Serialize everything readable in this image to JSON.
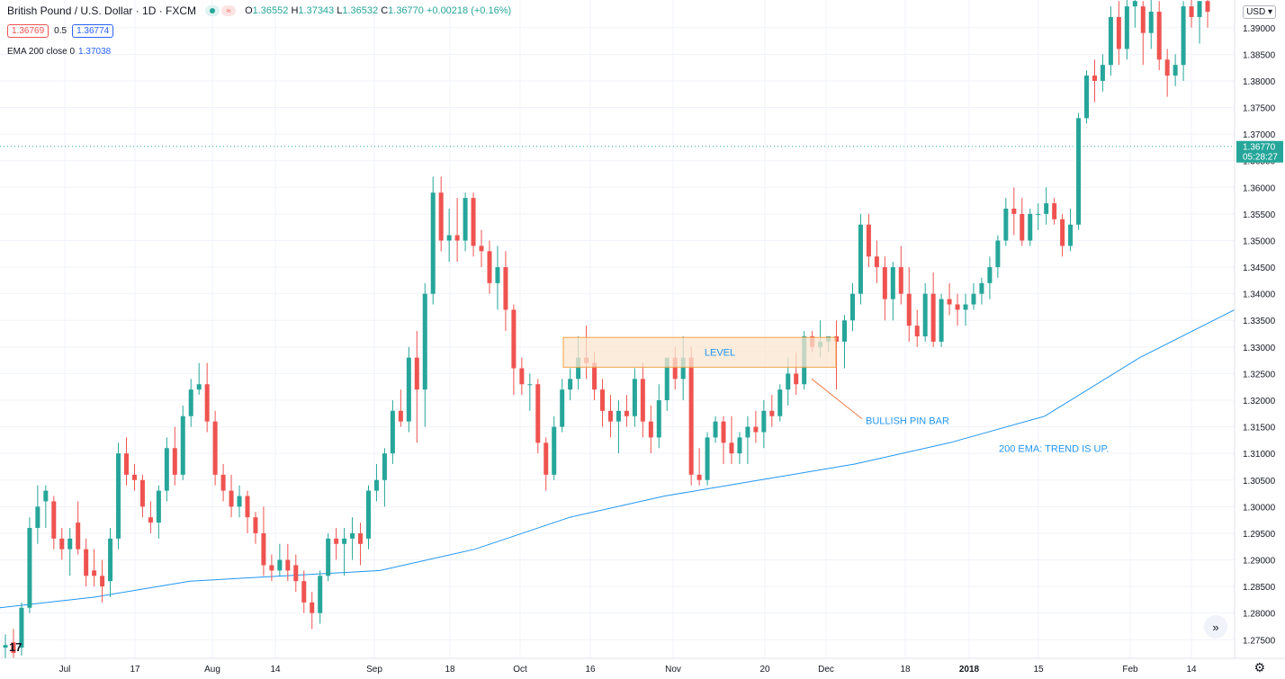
{
  "header": {
    "title": "British Pound / U.S. Dollar · 1D · FXCM",
    "ohlc": {
      "o_label": "O",
      "o": "1.36552",
      "h_label": "H",
      "h": "1.37343",
      "l_label": "L",
      "l": "1.36532",
      "c_label": "C",
      "c": "1.36770",
      "change": "+0.00218 (+0.16%)"
    },
    "sell_price": "1.36769",
    "spread": "0.5",
    "buy_price": "1.36774",
    "indicator_label": "EMA 200 close 0",
    "indicator_value": "1.37038"
  },
  "currency_selector": "USD",
  "price_label": {
    "price": "1.36770",
    "countdown": "05:28:27"
  },
  "annotations": {
    "level": "LEVEL",
    "pin_bar": "BULLISH PIN BAR",
    "ema_note": "200 EMA: TREND IS UP."
  },
  "colors": {
    "up": "#26a69a",
    "down": "#ef5350",
    "ema": "#2196f3",
    "level_fill": "#fbe6cf",
    "level_border": "#f0a24b"
  },
  "chart_data": {
    "type": "candlestick",
    "y_ticks": [
      "1.39000",
      "1.38500",
      "1.38000",
      "1.37500",
      "1.37000",
      "1.36500",
      "1.36000",
      "1.35500",
      "1.35000",
      "1.34500",
      "1.34000",
      "1.33500",
      "1.33000",
      "1.32500",
      "1.32000",
      "1.31500",
      "1.31000",
      "1.30500",
      "1.30000",
      "1.29500",
      "1.29000",
      "1.28500",
      "1.28000",
      "1.27500"
    ],
    "ylim": [
      1.2715,
      1.3952
    ],
    "x_ticks": [
      "Jul",
      "17",
      "Aug",
      "14",
      "Sep",
      "18",
      "Oct",
      "16",
      "Nov",
      "20",
      "Dec",
      "18",
      "2018",
      "15",
      "Feb",
      "14"
    ],
    "last_price": 1.3677,
    "ohlc": [
      [
        1.2735,
        1.276,
        1.2715,
        1.274
      ],
      [
        1.2745,
        1.277,
        1.2715,
        1.2725
      ],
      [
        1.2735,
        1.282,
        1.272,
        1.281
      ],
      [
        1.281,
        1.298,
        1.28,
        1.296
      ],
      [
        1.296,
        1.304,
        1.293,
        1.3
      ],
      [
        1.301,
        1.304,
        1.296,
        1.303
      ],
      [
        1.301,
        1.302,
        1.292,
        1.294
      ],
      [
        1.294,
        1.296,
        1.29,
        1.292
      ],
      [
        1.292,
        1.296,
        1.287,
        1.294
      ],
      [
        1.297,
        1.301,
        1.291,
        1.292
      ],
      [
        1.292,
        1.294,
        1.285,
        1.287
      ],
      [
        1.288,
        1.292,
        1.285,
        1.287
      ],
      [
        1.287,
        1.29,
        1.282,
        1.285
      ],
      [
        1.286,
        1.296,
        1.283,
        1.294
      ],
      [
        1.294,
        1.312,
        1.292,
        1.31
      ],
      [
        1.31,
        1.313,
        1.304,
        1.306
      ],
      [
        1.306,
        1.308,
        1.303,
        1.305
      ],
      [
        1.305,
        1.306,
        1.298,
        1.3
      ],
      [
        1.298,
        1.301,
        1.295,
        1.297
      ],
      [
        1.297,
        1.304,
        1.294,
        1.303
      ],
      [
        1.303,
        1.313,
        1.301,
        1.311
      ],
      [
        1.311,
        1.315,
        1.304,
        1.306
      ],
      [
        1.306,
        1.319,
        1.305,
        1.317
      ],
      [
        1.317,
        1.324,
        1.315,
        1.322
      ],
      [
        1.322,
        1.327,
        1.321,
        1.323
      ],
      [
        1.323,
        1.327,
        1.314,
        1.316
      ],
      [
        1.316,
        1.318,
        1.304,
        1.306
      ],
      [
        1.306,
        1.308,
        1.301,
        1.303
      ],
      [
        1.303,
        1.306,
        1.298,
        1.3
      ],
      [
        1.3,
        1.304,
        1.298,
        1.302
      ],
      [
        1.302,
        1.303,
        1.295,
        1.298
      ],
      [
        1.298,
        1.299,
        1.293,
        1.295
      ],
      [
        1.295,
        1.3,
        1.287,
        1.289
      ],
      [
        1.289,
        1.291,
        1.286,
        1.288
      ],
      [
        1.288,
        1.293,
        1.287,
        1.29
      ],
      [
        1.29,
        1.293,
        1.286,
        1.288
      ],
      [
        1.289,
        1.291,
        1.284,
        1.286
      ],
      [
        1.286,
        1.288,
        1.28,
        1.282
      ],
      [
        1.282,
        1.284,
        1.277,
        1.28
      ],
      [
        1.28,
        1.288,
        1.278,
        1.287
      ],
      [
        1.287,
        1.295,
        1.286,
        1.294
      ],
      [
        1.294,
        1.296,
        1.29,
        1.293
      ],
      [
        1.293,
        1.296,
        1.287,
        1.294
      ],
      [
        1.294,
        1.298,
        1.29,
        1.295
      ],
      [
        1.295,
        1.297,
        1.289,
        1.293
      ],
      [
        1.294,
        1.304,
        1.292,
        1.303
      ],
      [
        1.303,
        1.308,
        1.301,
        1.305
      ],
      [
        1.305,
        1.311,
        1.3,
        1.31
      ],
      [
        1.31,
        1.32,
        1.308,
        1.318
      ],
      [
        1.318,
        1.322,
        1.315,
        1.316
      ],
      [
        1.316,
        1.33,
        1.314,
        1.328
      ],
      [
        1.328,
        1.333,
        1.312,
        1.322
      ],
      [
        1.322,
        1.342,
        1.315,
        1.34
      ],
      [
        1.34,
        1.362,
        1.338,
        1.359
      ],
      [
        1.359,
        1.362,
        1.348,
        1.35
      ],
      [
        1.35,
        1.356,
        1.346,
        1.351
      ],
      [
        1.351,
        1.358,
        1.346,
        1.35
      ],
      [
        1.35,
        1.359,
        1.348,
        1.358
      ],
      [
        1.358,
        1.359,
        1.347,
        1.349
      ],
      [
        1.349,
        1.352,
        1.345,
        1.348
      ],
      [
        1.348,
        1.35,
        1.34,
        1.342
      ],
      [
        1.342,
        1.349,
        1.337,
        1.345
      ],
      [
        1.345,
        1.348,
        1.333,
        1.337
      ],
      [
        1.337,
        1.338,
        1.321,
        1.326
      ],
      [
        1.326,
        1.328,
        1.321,
        1.323
      ],
      [
        1.323,
        1.325,
        1.318,
        1.323
      ],
      [
        1.323,
        1.324,
        1.31,
        1.312
      ],
      [
        1.312,
        1.313,
        1.303,
        1.306
      ],
      [
        1.306,
        1.317,
        1.305,
        1.315
      ],
      [
        1.315,
        1.324,
        1.314,
        1.322
      ],
      [
        1.322,
        1.326,
        1.32,
        1.324
      ],
      [
        1.324,
        1.332,
        1.322,
        1.328
      ],
      [
        1.328,
        1.334,
        1.324,
        1.327
      ],
      [
        1.327,
        1.329,
        1.32,
        1.322
      ],
      [
        1.322,
        1.324,
        1.315,
        1.318
      ],
      [
        1.318,
        1.321,
        1.313,
        1.316
      ],
      [
        1.316,
        1.32,
        1.31,
        1.318
      ],
      [
        1.318,
        1.321,
        1.315,
        1.317
      ],
      [
        1.317,
        1.326,
        1.315,
        1.324
      ],
      [
        1.324,
        1.327,
        1.313,
        1.316
      ],
      [
        1.316,
        1.319,
        1.31,
        1.313
      ],
      [
        1.313,
        1.323,
        1.311,
        1.32
      ],
      [
        1.32,
        1.328,
        1.318,
        1.328
      ],
      [
        1.328,
        1.33,
        1.322,
        1.324
      ],
      [
        1.324,
        1.332,
        1.32,
        1.328
      ],
      [
        1.328,
        1.33,
        1.304,
        1.306
      ],
      [
        1.306,
        1.311,
        1.304,
        1.305
      ],
      [
        1.305,
        1.314,
        1.304,
        1.313
      ],
      [
        1.313,
        1.317,
        1.312,
        1.316
      ],
      [
        1.316,
        1.317,
        1.308,
        1.312
      ],
      [
        1.312,
        1.317,
        1.308,
        1.31
      ],
      [
        1.31,
        1.314,
        1.308,
        1.313
      ],
      [
        1.313,
        1.317,
        1.308,
        1.315
      ],
      [
        1.315,
        1.318,
        1.312,
        1.314
      ],
      [
        1.314,
        1.32,
        1.311,
        1.318
      ],
      [
        1.318,
        1.321,
        1.315,
        1.317
      ],
      [
        1.317,
        1.323,
        1.316,
        1.322
      ],
      [
        1.322,
        1.328,
        1.319,
        1.325
      ],
      [
        1.325,
        1.329,
        1.321,
        1.323
      ],
      [
        1.323,
        1.333,
        1.322,
        1.332
      ],
      [
        1.332,
        1.333,
        1.329,
        1.33
      ],
      [
        1.33,
        1.335,
        1.328,
        1.331
      ],
      [
        1.331,
        1.332,
        1.329,
        1.332
      ],
      [
        1.332,
        1.335,
        1.322,
        1.331
      ],
      [
        1.331,
        1.336,
        1.326,
        1.335
      ],
      [
        1.335,
        1.342,
        1.333,
        1.34
      ],
      [
        1.34,
        1.355,
        1.338,
        1.353
      ],
      [
        1.353,
        1.355,
        1.345,
        1.347
      ],
      [
        1.347,
        1.35,
        1.342,
        1.345
      ],
      [
        1.345,
        1.347,
        1.335,
        1.339
      ],
      [
        1.339,
        1.346,
        1.335,
        1.345
      ],
      [
        1.345,
        1.349,
        1.338,
        1.34
      ],
      [
        1.34,
        1.345,
        1.331,
        1.334
      ],
      [
        1.334,
        1.337,
        1.33,
        1.332
      ],
      [
        1.332,
        1.342,
        1.331,
        1.34
      ],
      [
        1.34,
        1.344,
        1.33,
        1.331
      ],
      [
        1.331,
        1.34,
        1.33,
        1.339
      ],
      [
        1.339,
        1.342,
        1.336,
        1.338
      ],
      [
        1.338,
        1.34,
        1.334,
        1.337
      ],
      [
        1.337,
        1.34,
        1.334,
        1.338
      ],
      [
        1.338,
        1.342,
        1.337,
        1.34
      ],
      [
        1.34,
        1.343,
        1.338,
        1.342
      ],
      [
        1.342,
        1.347,
        1.339,
        1.345
      ],
      [
        1.345,
        1.351,
        1.343,
        1.35
      ],
      [
        1.35,
        1.358,
        1.349,
        1.356
      ],
      [
        1.356,
        1.36,
        1.351,
        1.355
      ],
      [
        1.355,
        1.358,
        1.349,
        1.35
      ],
      [
        1.35,
        1.356,
        1.349,
        1.355
      ],
      [
        1.355,
        1.357,
        1.352,
        1.355
      ],
      [
        1.355,
        1.36,
        1.353,
        1.357
      ],
      [
        1.357,
        1.358,
        1.353,
        1.354
      ],
      [
        1.354,
        1.355,
        1.347,
        1.349
      ],
      [
        1.349,
        1.356,
        1.348,
        1.353
      ],
      [
        1.353,
        1.374,
        1.352,
        1.373
      ],
      [
        1.373,
        1.382,
        1.372,
        1.381
      ],
      [
        1.381,
        1.384,
        1.376,
        1.38
      ],
      [
        1.38,
        1.385,
        1.378,
        1.383
      ],
      [
        1.383,
        1.394,
        1.381,
        1.392
      ],
      [
        1.392,
        1.395,
        1.383,
        1.386
      ],
      [
        1.386,
        1.396,
        1.384,
        1.394
      ],
      [
        1.394,
        1.396,
        1.39,
        1.395
      ],
      [
        1.394,
        1.395,
        1.383,
        1.389
      ],
      [
        1.389,
        1.396,
        1.386,
        1.393
      ],
      [
        1.393,
        1.395,
        1.382,
        1.384
      ],
      [
        1.384,
        1.386,
        1.377,
        1.381
      ],
      [
        1.381,
        1.385,
        1.379,
        1.383
      ],
      [
        1.383,
        1.395,
        1.38,
        1.394
      ],
      [
        1.394,
        1.396,
        1.39,
        1.392
      ],
      [
        1.392,
        1.395,
        1.387,
        1.395
      ],
      [
        1.395,
        1.396,
        1.39,
        1.393
      ]
    ],
    "ema200": [
      1.281,
      1.283,
      1.286,
      1.287,
      1.288,
      1.292,
      1.298,
      1.302,
      1.305,
      1.308,
      1.312,
      1.317,
      1.328,
      1.337
    ]
  }
}
